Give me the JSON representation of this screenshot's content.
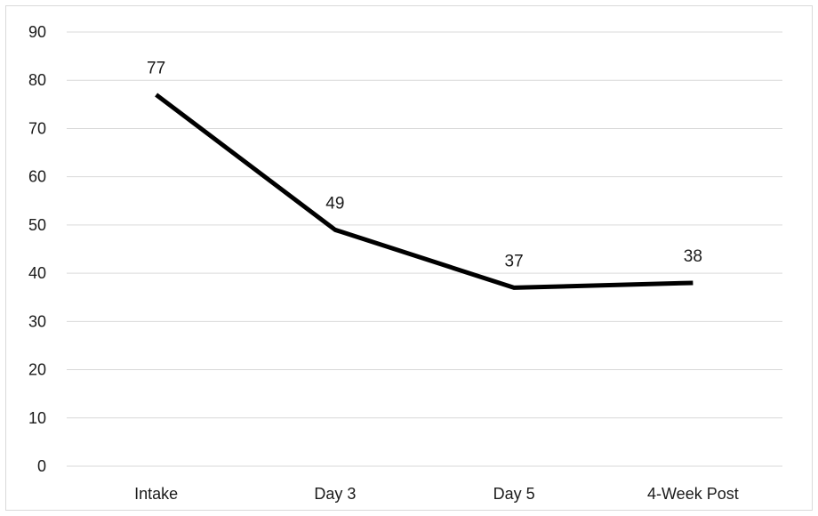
{
  "chart_data": {
    "type": "line",
    "title": "",
    "xlabel": "",
    "ylabel": "",
    "categories": [
      "Intake",
      "Day 3",
      "Day 5",
      "4-Week Post"
    ],
    "series": [
      {
        "values": [
          77,
          49,
          37,
          38
        ]
      }
    ],
    "ylim": [
      0,
      90
    ],
    "yticks": [
      0,
      10,
      20,
      30,
      40,
      50,
      60,
      70,
      80,
      90
    ],
    "grid": true,
    "legend": "none",
    "data_labels": true,
    "line_color": "#000000",
    "grid_color": "#d9d9d9"
  }
}
